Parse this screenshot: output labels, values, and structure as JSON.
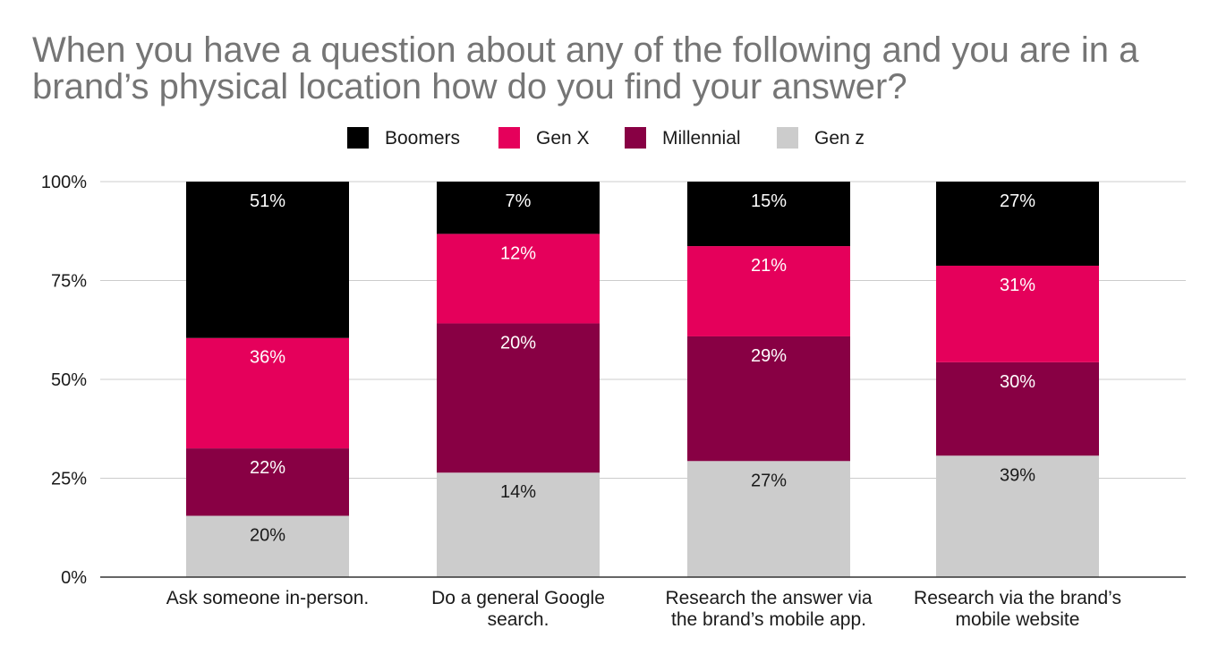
{
  "chart_data": {
    "type": "bar",
    "stacked": true,
    "normalized": true,
    "title": "When you have a question about any of the following and you are in a brand’s physical location how do you find your answer?",
    "title_lines": [
      "When you have a question about any of the following and you are in a",
      "brand’s physical location how do you find your answer?"
    ],
    "categories": [
      "Ask someone in-person.",
      "Do a general Google search.",
      "Research the answer via the brand’s mobile app.",
      "Research via the brand’s mobile website"
    ],
    "category_lines": [
      [
        "Ask someone in-person."
      ],
      [
        "Do a general Google",
        "search."
      ],
      [
        "Research the answer via",
        "the brand’s mobile app."
      ],
      [
        "Research via the brand’s",
        "mobile website"
      ]
    ],
    "series": [
      {
        "name": "Gen z",
        "values": [
          20,
          14,
          27,
          39
        ],
        "color": "#cccccc",
        "label_color": "#1a1a1a"
      },
      {
        "name": "Millennial",
        "values": [
          22,
          20,
          29,
          30
        ],
        "color": "#880044",
        "label_color": "#ffffff"
      },
      {
        "name": "Gen X",
        "values": [
          36,
          12,
          21,
          31
        ],
        "color": "#e5005b",
        "label_color": "#ffffff"
      },
      {
        "name": "Boomers",
        "values": [
          51,
          7,
          15,
          27
        ],
        "color": "#000000",
        "label_color": "#ffffff"
      }
    ],
    "data_labels": [
      [
        "20%",
        "14%",
        "27%",
        "39%"
      ],
      [
        "22%",
        "20%",
        "29%",
        "30%"
      ],
      [
        "36%",
        "12%",
        "21%",
        "31%"
      ],
      [
        "51%",
        "7%",
        "15%",
        "27%"
      ]
    ],
    "legend_order": [
      "Boomers",
      "Gen X",
      "Millennial",
      "Gen z"
    ],
    "legend_position": "top",
    "y_ticks": [
      "0%",
      "25%",
      "50%",
      "75%",
      "100%"
    ],
    "ylim": [
      0,
      100
    ],
    "grid": true,
    "xlabel": "",
    "ylabel": ""
  }
}
